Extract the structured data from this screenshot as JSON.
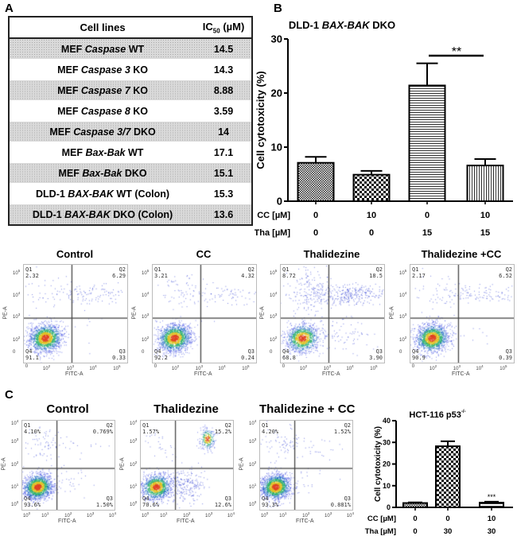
{
  "panel_labels": {
    "a": "A",
    "b": "B",
    "c": "C"
  },
  "table": {
    "headers": [
      "Cell lines",
      "IC",
      "50",
      "(µM)"
    ],
    "rows": [
      {
        "pre": "MEF ",
        "it": "Caspase",
        "post": " WT",
        "value": "14.5"
      },
      {
        "pre": "MEF ",
        "it": "Caspase 3",
        "post": " KO",
        "value": "14.3"
      },
      {
        "pre": "MEF ",
        "it": "Caspase 7",
        "post": " KO",
        "value": "8.88"
      },
      {
        "pre": "MEF ",
        "it": "Caspase 8",
        "post": " KO",
        "value": "3.59"
      },
      {
        "pre": "MEF ",
        "it": "Caspase 3/7",
        "post": " DKO",
        "value": "14"
      },
      {
        "pre": "MEF ",
        "it": "Bax-Bak",
        "post": " WT",
        "value": "17.1"
      },
      {
        "pre": "MEF ",
        "it": "Bax-Bak",
        "post": " DKO",
        "value": "15.1"
      },
      {
        "pre": "DLD-1 ",
        "it": "BAX-BAK",
        "post": " WT (Colon)",
        "value": "15.3"
      },
      {
        "pre": "DLD-1 ",
        "it": "BAX-BAK",
        "post": " DKO (Colon)",
        "value": "13.6"
      }
    ]
  },
  "chart_data": [
    {
      "type": "bar",
      "title_pre": "DLD-1 ",
      "title_it": "BAX-BAK",
      "title_post": " DKO",
      "ylabel": "Cell cytotoxicity (%)",
      "ylim": [
        0,
        30
      ],
      "yticks": [
        "0",
        "10",
        "20",
        "30"
      ],
      "row_labels": [
        "CC [µM]",
        "Tha [µM]"
      ],
      "categories_cc": [
        "0",
        "10",
        "0",
        "10"
      ],
      "categories_tha": [
        "0",
        "0",
        "15",
        "15"
      ],
      "values": [
        7.1,
        4.9,
        21.4,
        6.6
      ],
      "errors": [
        1.1,
        0.7,
        4.1,
        1.2
      ],
      "patterns": [
        "fine-check",
        "check",
        "horizontal-lines",
        "vertical-lines"
      ],
      "annotation": "**"
    },
    {
      "type": "scatter",
      "group": "B",
      "title": "Control",
      "xlabel": "FITC-A",
      "ylabel": "PE-A",
      "xticks": [
        "0",
        "10^2",
        "10^3",
        "10^4",
        "10^5"
      ],
      "yticks": [
        "10^5",
        "10^4",
        "10^3",
        "10^2",
        "0"
      ],
      "quadrants": {
        "Q1": "2.32",
        "Q2": "6.29",
        "Q3": "0.33",
        "Q4": "91.1"
      }
    },
    {
      "type": "scatter",
      "group": "B",
      "title": "CC",
      "xlabel": "FITC-A",
      "ylabel": "PE-A",
      "xticks": [
        "0",
        "10^2",
        "10^3",
        "10^4",
        "10^5"
      ],
      "yticks": [
        "10^5",
        "10^4",
        "10^3",
        "10^2",
        "0"
      ],
      "quadrants": {
        "Q1": "3.21",
        "Q2": "4.32",
        "Q3": "0.24",
        "Q4": "92.2"
      }
    },
    {
      "type": "scatter",
      "group": "B",
      "title": "Thalidezine",
      "xlabel": "FITC-A",
      "ylabel": "PE-A",
      "xticks": [
        "0",
        "10^2",
        "10^3",
        "10^4",
        "10^5"
      ],
      "yticks": [
        "10^5",
        "10^4",
        "10^3",
        "10^2",
        "0"
      ],
      "quadrants": {
        "Q1": "8.72",
        "Q2": "18.5",
        "Q3": "3.90",
        "Q4": "68.8"
      }
    },
    {
      "type": "scatter",
      "group": "B",
      "title": "Thalidezine +CC",
      "xlabel": "FITC-A",
      "ylabel": "PE-A",
      "xticks": [
        "0",
        "10^2",
        "10^3",
        "10^4",
        "10^5"
      ],
      "yticks": [
        "10^5",
        "10^4",
        "10^3",
        "10^2",
        "0"
      ],
      "quadrants": {
        "Q1": "2.17",
        "Q2": "6.52",
        "Q3": "0.39",
        "Q4": "90.9"
      }
    },
    {
      "type": "scatter",
      "group": "C",
      "title": "Control",
      "xlabel": "FITC-A",
      "ylabel": "PE-A",
      "xticks": [
        "10^0",
        "10^1",
        "10^2",
        "10^3",
        "10^4"
      ],
      "yticks": [
        "10^4",
        "10^3",
        "10^2",
        "10^1",
        "10^0"
      ],
      "quadrants": {
        "Q1": "4.10%",
        "Q2": "0.769%",
        "Q3": "1.50%",
        "Q4": "93.6%"
      }
    },
    {
      "type": "scatter",
      "group": "C",
      "title": "Thalidezine",
      "xlabel": "FITC-A",
      "ylabel": "PE-A",
      "xticks": [
        "10^0",
        "10^1",
        "10^2",
        "10^3",
        "10^4"
      ],
      "yticks": [
        "10^4",
        "10^3",
        "10^2",
        "10^1",
        "10^0"
      ],
      "quadrants": {
        "Q1": "1.57%",
        "Q2": "15.2%",
        "Q3": "12.6%",
        "Q4": "70.6%"
      }
    },
    {
      "type": "scatter",
      "group": "C",
      "title": "Thalidezine + CC",
      "xlabel": "FITC-A",
      "ylabel": "PE-A",
      "xticks": [
        "10^0",
        "10^1",
        "10^2",
        "10^3",
        "10^4"
      ],
      "yticks": [
        "10^4",
        "10^3",
        "10^2",
        "10^1",
        "10^0"
      ],
      "quadrants": {
        "Q1": "4.20%",
        "Q2": "1.52%",
        "Q3": "0.881%",
        "Q4": "93.3%"
      }
    },
    {
      "type": "bar",
      "title": "HCT-116 p53",
      "title_sup": "-/-",
      "ylabel": "Cell cytotoxicity (%)",
      "ylim": [
        0,
        40
      ],
      "yticks": [
        "0",
        "10",
        "20",
        "30",
        "40"
      ],
      "row_labels": [
        "CC [µM]",
        "Tha [µM]"
      ],
      "categories_cc": [
        "0",
        "0",
        "10"
      ],
      "categories_tha": [
        "0",
        "30",
        "30"
      ],
      "values": [
        2.0,
        28.2,
        2.2
      ],
      "errors": [
        0.3,
        2.3,
        0.4
      ],
      "patterns": [
        "fine-check",
        "check",
        "horizontal-lines"
      ],
      "annotation": "***"
    }
  ]
}
